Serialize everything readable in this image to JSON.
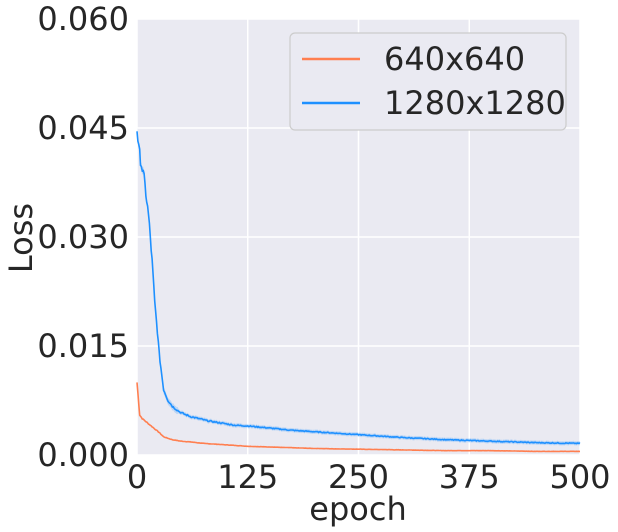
{
  "chart_data": {
    "type": "line",
    "xlabel": "epoch",
    "ylabel": "Loss",
    "xlim": [
      0,
      500
    ],
    "ylim": [
      0,
      0.06
    ],
    "xticks": [
      0,
      125,
      250,
      375,
      500
    ],
    "xtick_labels": [
      "0",
      "125",
      "250",
      "375",
      "500"
    ],
    "yticks": [
      0,
      0.015,
      0.03,
      0.045,
      0.06
    ],
    "ytick_labels": [
      "0.000",
      "0.015",
      "0.030",
      "0.045",
      "0.060"
    ],
    "grid": true,
    "background": "#eaeaf2",
    "legend_position": "top-right",
    "series": [
      {
        "name": "640x640",
        "color": "#ff7f50",
        "x": [
          0,
          3,
          6,
          10,
          15,
          20,
          25,
          30,
          40,
          50,
          60,
          75,
          100,
          125,
          150,
          200,
          250,
          300,
          350,
          400,
          450,
          500
        ],
        "y": [
          0.01,
          0.0055,
          0.005,
          0.0046,
          0.0041,
          0.0036,
          0.0031,
          0.0025,
          0.0021,
          0.0019,
          0.0018,
          0.0016,
          0.0014,
          0.0012,
          0.0011,
          0.0009,
          0.0008,
          0.0007,
          0.0006,
          0.0006,
          0.0005,
          0.0005
        ]
      },
      {
        "name": "1280x1280",
        "color": "#1e90ff",
        "band": 0.0008,
        "x": [
          0,
          2,
          5,
          8,
          10,
          13,
          15,
          18,
          20,
          23,
          25,
          28,
          30,
          35,
          40,
          45,
          50,
          60,
          70,
          80,
          90,
          100,
          110,
          125,
          150,
          175,
          200,
          250,
          300,
          350,
          400,
          450,
          500
        ],
        "y": [
          0.045,
          0.042,
          0.04,
          0.038,
          0.036,
          0.033,
          0.03,
          0.025,
          0.021,
          0.017,
          0.014,
          0.011,
          0.009,
          0.0075,
          0.0067,
          0.0062,
          0.0058,
          0.0053,
          0.005,
          0.0047,
          0.0045,
          0.0043,
          0.0041,
          0.004,
          0.0037,
          0.0034,
          0.0032,
          0.0028,
          0.0024,
          0.0021,
          0.0019,
          0.0017,
          0.0016
        ]
      }
    ]
  }
}
